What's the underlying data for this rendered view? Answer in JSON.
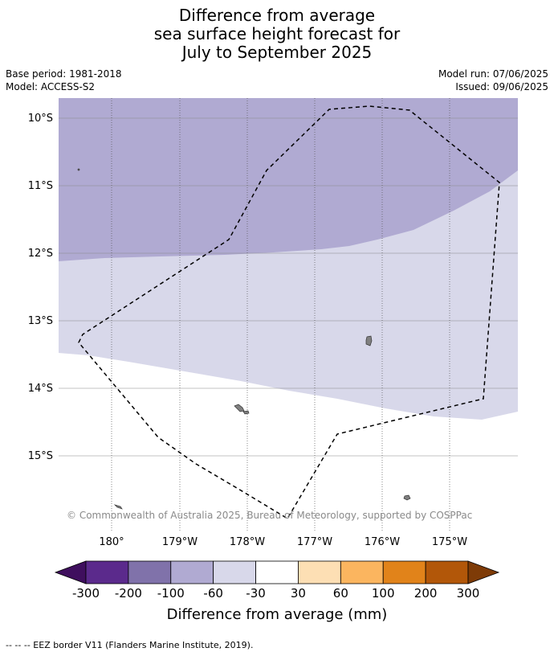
{
  "title": {
    "line1": "Difference from average",
    "line2": "sea surface height forecast for",
    "line3": "July to September 2025"
  },
  "meta": {
    "base_period": "Base period: 1981-2018",
    "model": "Model: ACCESS-S2",
    "model_run": "Model run: 07/06/2025",
    "issued": "Issued: 09/06/2025"
  },
  "map": {
    "lat_labels": [
      "10°S",
      "11°S",
      "12°S",
      "13°S",
      "14°S",
      "15°S"
    ],
    "lon_labels": [
      "180°",
      "179°W",
      "178°W",
      "177°W",
      "176°W",
      "175°W"
    ],
    "copyright": "© Commonwealth of Australia 2025, Bureau of Meteorology, supported by COSPPac",
    "colors": {
      "band_-100_-60": "#b0aad2",
      "band_-60_-30": "#d8d8ea",
      "band_-30_30": "#ffffff",
      "land": "#808080",
      "eez_line": "#000000"
    }
  },
  "colorbar": {
    "ticks": [
      "-300",
      "-200",
      "-100",
      "-60",
      "-30",
      "30",
      "60",
      "100",
      "200",
      "300"
    ],
    "colors": [
      "#3f0f5e",
      "#5b2a8c",
      "#8072aa",
      "#b0aad2",
      "#d8d8ea",
      "#ffffff",
      "#fddfb4",
      "#fbb55f",
      "#e1831a",
      "#b25709",
      "#7e3b07"
    ],
    "title": "Difference from average (mm)"
  },
  "footer": {
    "legend_note": "--  --  -- EEZ border V11 (Flanders Marine Institute, 2019)."
  }
}
